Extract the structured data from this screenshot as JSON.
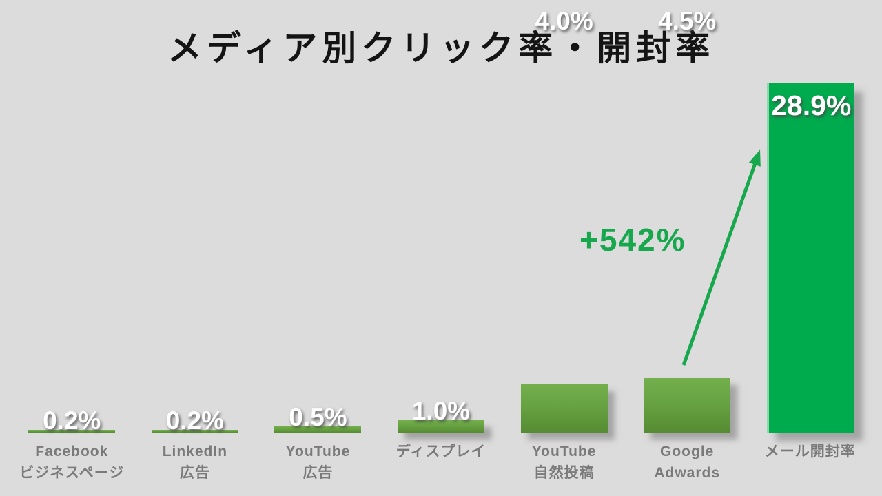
{
  "slide": {
    "background_color": "#dcdcdc"
  },
  "chart_data": {
    "type": "bar",
    "title": "メディア別クリック率・開封率",
    "categories": [
      [
        "Facebook",
        "ビジネスページ"
      ],
      [
        "LinkedIn",
        "広告"
      ],
      [
        "YouTube",
        "広告"
      ],
      [
        "ディスプレイ"
      ],
      [
        "YouTube",
        "自然投稿"
      ],
      [
        "Google",
        "Adwards"
      ],
      [
        "メール開封率"
      ]
    ],
    "values": [
      0.2,
      0.2,
      0.5,
      1.0,
      4.0,
      4.5,
      28.9
    ],
    "value_labels": [
      "0.2%",
      "0.2%",
      "0.5%",
      "1.0%",
      "4.0%",
      "4.5%",
      "28.9%"
    ],
    "unit": "%",
    "ylim": [
      0,
      29.5
    ],
    "grid": false,
    "legend": false,
    "axis_lines": false,
    "highlight_index": 6,
    "annotation": {
      "text": "+542%",
      "from_category": "Google Adwards",
      "to_category": "メール開封率"
    },
    "colors": {
      "bar": "#67a242",
      "bar_highlight": "#00ab4e",
      "annotation_arrow": "#17a74d",
      "value_text": "#ffffff",
      "category_label": "#7a7a7a",
      "title_text": "#141414",
      "background": "#dcdcdc"
    }
  }
}
